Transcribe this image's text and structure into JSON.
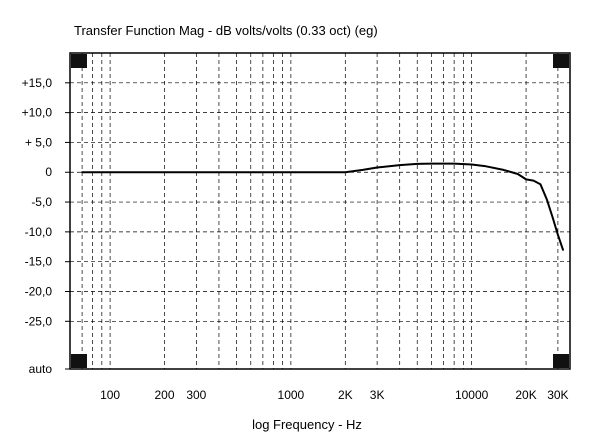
{
  "chart_data": {
    "type": "line",
    "title": "Transfer Function Mag - dB volts/volts (0.33 oct) (eg)",
    "xlabel": "log Frequency - Hz",
    "ylabel": "",
    "x_scale": "log",
    "xlim": [
      60,
      35000
    ],
    "ylim": [
      -33,
      20
    ],
    "grid": true,
    "x_ticks": [
      {
        "value": 100,
        "label": "100"
      },
      {
        "value": 200,
        "label": "200"
      },
      {
        "value": 300,
        "label": "300"
      },
      {
        "value": 1000,
        "label": "1000"
      },
      {
        "value": 2000,
        "label": "2K"
      },
      {
        "value": 3000,
        "label": "3K"
      },
      {
        "value": 10000,
        "label": "10000"
      },
      {
        "value": 20000,
        "label": "20K"
      },
      {
        "value": 30000,
        "label": "30K"
      }
    ],
    "y_ticks": [
      {
        "value": 15,
        "label": "+15,0"
      },
      {
        "value": 10,
        "label": "+10,0"
      },
      {
        "value": 5,
        "label": "+ 5,0"
      },
      {
        "value": 0,
        "label": "0"
      },
      {
        "value": -5,
        "label": "-5,0"
      },
      {
        "value": -10,
        "label": "-10,0"
      },
      {
        "value": -15,
        "label": "-15,0"
      },
      {
        "value": -20,
        "label": "-20,0"
      },
      {
        "value": -25,
        "label": "-25,0"
      },
      {
        "value": -33,
        "label": "auto"
      }
    ],
    "series": [
      {
        "color": "#000000",
        "x": [
          70,
          100,
          200,
          500,
          1000,
          1500,
          2000,
          2500,
          3000,
          4000,
          5000,
          6000,
          8000,
          10000,
          12000,
          15000,
          18000,
          20000,
          22000,
          24000,
          26000,
          28000,
          30000,
          32000
        ],
        "y": [
          0,
          0,
          0,
          0,
          0,
          0,
          0,
          0.4,
          0.8,
          1.2,
          1.4,
          1.45,
          1.45,
          1.3,
          1.0,
          0.4,
          -0.3,
          -1.2,
          -1.4,
          -2.0,
          -4.5,
          -7.5,
          -10.5,
          -13.0
        ]
      }
    ]
  }
}
